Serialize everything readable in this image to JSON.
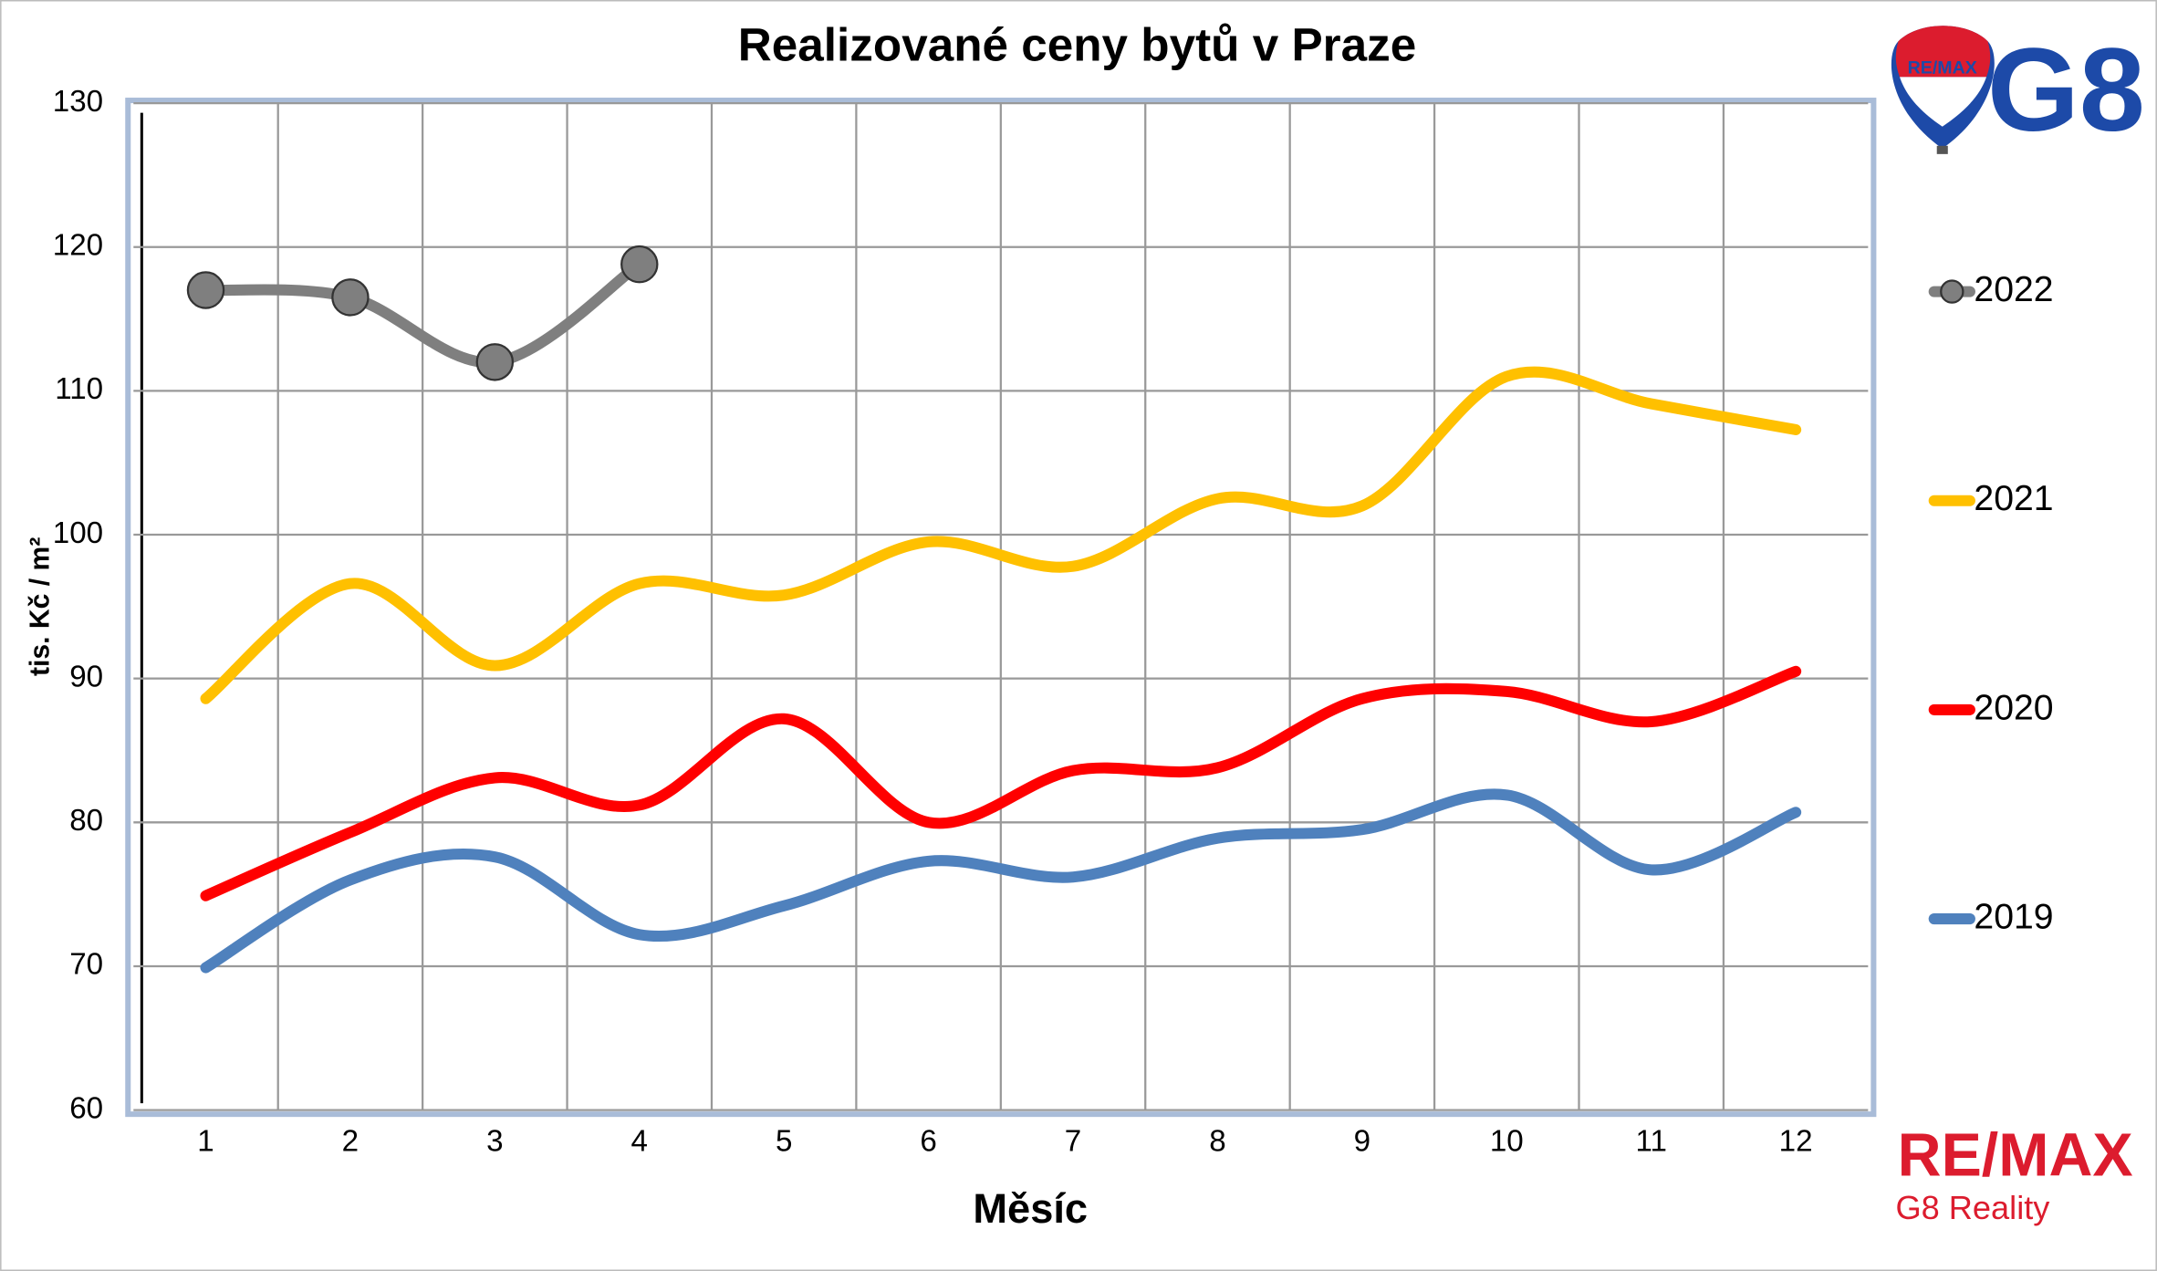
{
  "chart_data": {
    "type": "line",
    "title": "Realizované ceny bytů v Praze",
    "x_label": "Měsíc",
    "y_label": "tis. Kč / m²",
    "categories": [
      "1",
      "2",
      "3",
      "4",
      "5",
      "6",
      "7",
      "8",
      "9",
      "10",
      "11",
      "12"
    ],
    "ylim": [
      60,
      130
    ],
    "yticks": [
      60,
      70,
      80,
      90,
      100,
      110,
      120,
      130
    ],
    "grid": true,
    "legend": "right",
    "smooth": true,
    "series": [
      {
        "name": "2022",
        "color": "#7f7f7f",
        "markers": true,
        "values": [
          117,
          116.5,
          112,
          118.8,
          null,
          null,
          null,
          null,
          null,
          null,
          null,
          null
        ]
      },
      {
        "name": "2021",
        "color": "#ffc000",
        "markers": false,
        "values": [
          88.6,
          96.6,
          90.9,
          96.6,
          95.8,
          99.5,
          97.8,
          102.5,
          102,
          111,
          109.1,
          107.3
        ]
      },
      {
        "name": "2020",
        "color": "#ff0000",
        "markers": false,
        "values": [
          74.9,
          79.3,
          83.1,
          81.2,
          87.2,
          80,
          83.6,
          83.8,
          88.6,
          89.1,
          87,
          90.5
        ]
      },
      {
        "name": "2019",
        "color": "#4f81bd",
        "markers": false,
        "values": [
          69.9,
          76,
          77.6,
          72.2,
          74.2,
          77.3,
          76.2,
          78.9,
          79.5,
          81.9,
          76.7,
          80.7
        ]
      }
    ]
  },
  "branding": {
    "badge": "RE/MAX",
    "logo": "G8",
    "brand": "RE/MAX",
    "company": "G8 Reality"
  }
}
